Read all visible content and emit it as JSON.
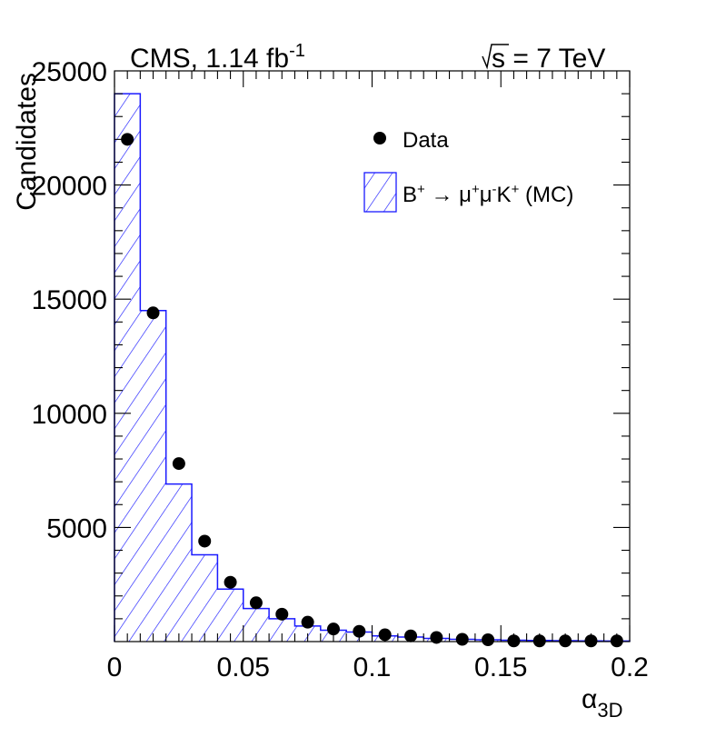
{
  "header": {
    "left_main": "CMS, 1.14 fb",
    "left_sup": "-1",
    "right": "s = 7 TeV"
  },
  "chart_data": {
    "type": "bar",
    "bin_edges": [
      0,
      0.01,
      0.02,
      0.03,
      0.04,
      0.05,
      0.06,
      0.07,
      0.08,
      0.09,
      0.1,
      0.11,
      0.12,
      0.13,
      0.14,
      0.15,
      0.16,
      0.17,
      0.18,
      0.19,
      0.2
    ],
    "series": [
      {
        "name": "B+ → μ+μ-K+ (MC)",
        "style": "hatched-histogram",
        "color": "#1a1aff",
        "values": [
          24000,
          14500,
          6900,
          3800,
          2300,
          1450,
          1000,
          680,
          500,
          420,
          250,
          200,
          140,
          100,
          80,
          60,
          50,
          40,
          30,
          25
        ]
      },
      {
        "name": "Data",
        "style": "markers",
        "color": "#000000",
        "x": [
          0.005,
          0.015,
          0.025,
          0.035,
          0.045,
          0.055,
          0.065,
          0.075,
          0.085,
          0.095,
          0.105,
          0.115,
          0.125,
          0.135,
          0.145,
          0.155,
          0.165,
          0.175,
          0.185,
          0.195
        ],
        "values": [
          22000,
          14400,
          7800,
          4400,
          2600,
          1700,
          1200,
          850,
          550,
          450,
          300,
          250,
          180,
          100,
          80,
          30,
          30,
          30,
          30,
          30
        ]
      }
    ],
    "xlim": [
      0,
      0.2
    ],
    "ylim": [
      0,
      25000
    ],
    "xticks": [
      0,
      0.05,
      0.1,
      0.15,
      0.2
    ],
    "xtick_labels": [
      "0",
      "0.05",
      "0.1",
      "0.15",
      "0.2"
    ],
    "yticks": [
      5000,
      10000,
      15000,
      20000,
      25000
    ],
    "ytick_labels": [
      "5000",
      "10000",
      "15000",
      "20000",
      "25000"
    ],
    "xlabel": "α",
    "xlabel_sub": "3D",
    "ylabel": "Candidates",
    "legend": {
      "position": "top-right",
      "data_label": "Data",
      "mc_parts": [
        "B",
        "+",
        " → μ",
        "+",
        "μ",
        "-",
        "K",
        "+",
        " (MC)"
      ]
    },
    "grid": false
  }
}
